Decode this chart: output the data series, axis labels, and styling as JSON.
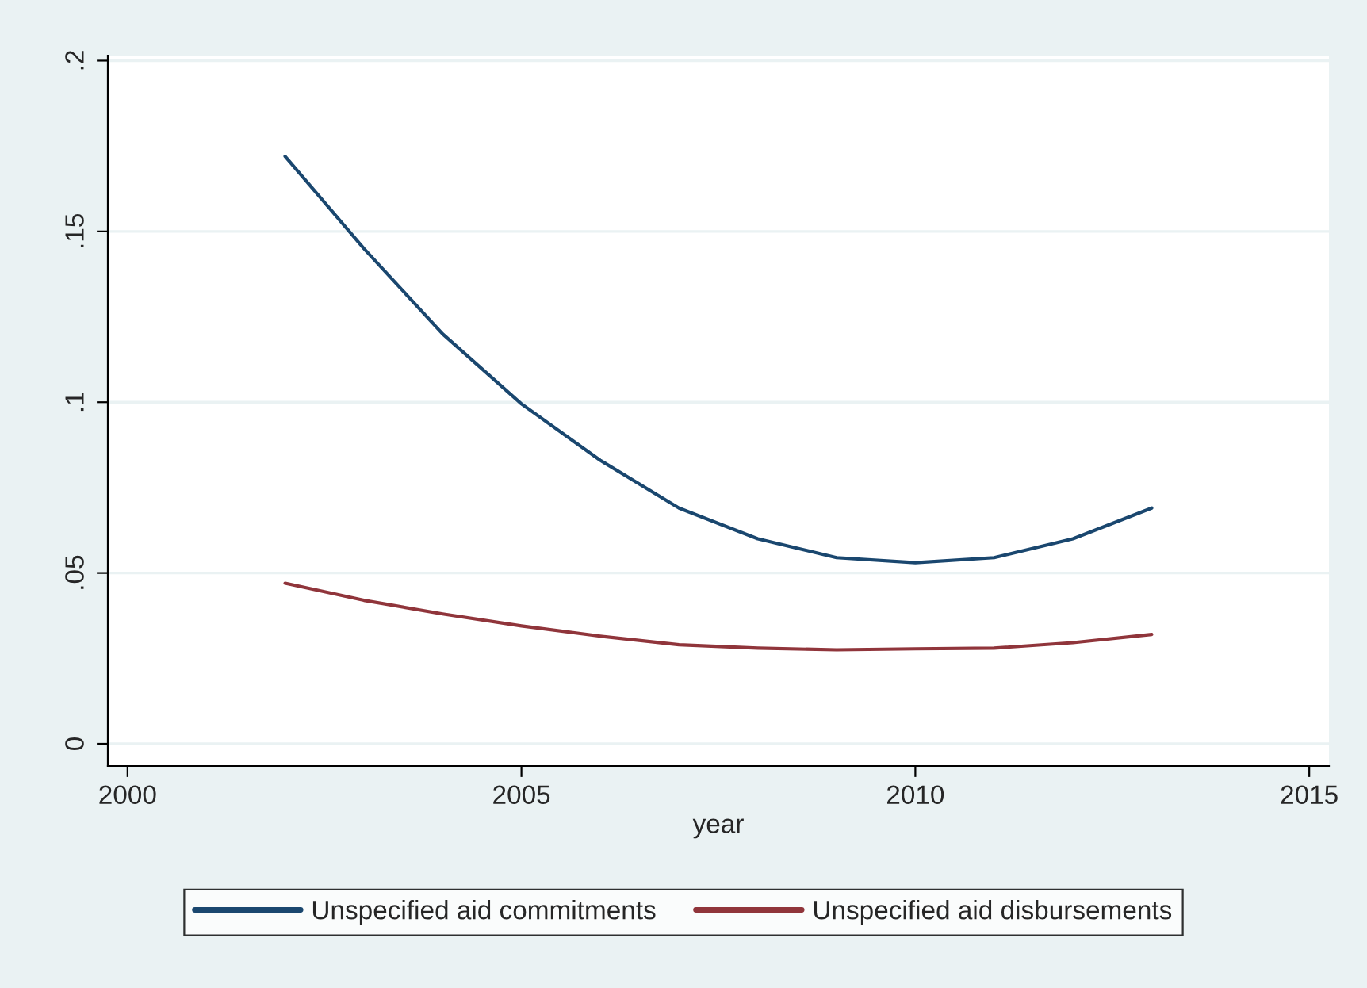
{
  "chart_data": {
    "type": "line",
    "xlabel": "year",
    "x": [
      2002,
      2003,
      2004,
      2005,
      2006,
      2007,
      2008,
      2009,
      2010,
      2011,
      2012,
      2013
    ],
    "series": [
      {
        "name": "Unspecified aid commitments",
        "color": "#1a476f",
        "values": [
          0.172,
          0.145,
          0.12,
          0.0995,
          0.083,
          0.069,
          0.06,
          0.0545,
          0.053,
          0.0545,
          0.06,
          0.069
        ]
      },
      {
        "name": "Unspecified aid disbursements",
        "color": "#90353b",
        "values": [
          0.047,
          0.042,
          0.038,
          0.0345,
          0.0315,
          0.029,
          0.028,
          0.0275,
          0.0278,
          0.028,
          0.0296,
          0.032
        ]
      }
    ],
    "xlim": [
      1999.75,
      2015.25
    ],
    "xticks": [
      2000,
      2005,
      2010,
      2015
    ],
    "ylim": [
      -0.0065,
      0.2015
    ],
    "yticks": [
      0,
      {
        "value": 0.05,
        "label": ".05"
      },
      {
        "value": 0.1,
        "label": ".1"
      },
      {
        "value": 0.15,
        "label": ".15"
      },
      {
        "value": 0.2,
        "label": ".2"
      }
    ],
    "grid": "y",
    "legend": "bottom",
    "marker": "none",
    "line_style": "solid"
  }
}
